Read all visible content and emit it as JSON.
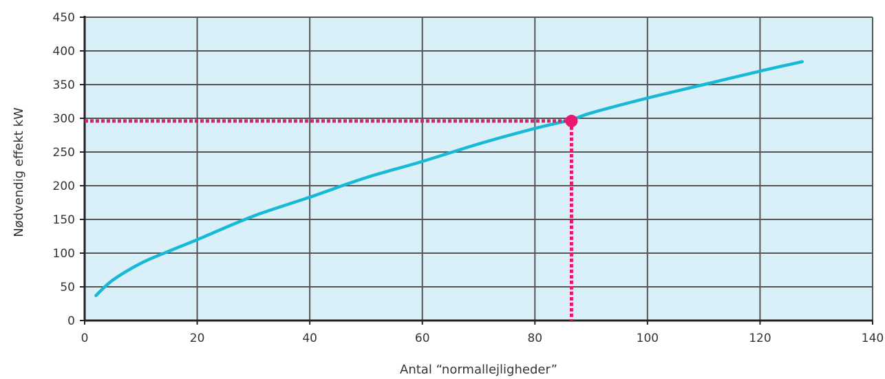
{
  "chart_data": {
    "type": "line",
    "xlabel": "Antal “normallejligheder”",
    "ylabel": "Nødvendig effekt kW",
    "xlim": [
      0,
      140
    ],
    "ylim": [
      0,
      450
    ],
    "xticks": [
      0,
      20,
      40,
      60,
      80,
      100,
      120,
      140
    ],
    "yticks": [
      0,
      50,
      100,
      150,
      200,
      250,
      300,
      350,
      400,
      450
    ],
    "grid": true,
    "legend": "none",
    "series": [
      {
        "x": [
          2,
          5,
          10,
          15,
          20,
          30,
          40,
          50,
          60,
          70,
          80,
          86.5,
          90,
          100,
          110,
          120,
          127.5
        ],
        "y": [
          37,
          60,
          85,
          103,
          120,
          155,
          183,
          212,
          236,
          262,
          285,
          298,
          308,
          330,
          350,
          370,
          384
        ]
      }
    ],
    "annotation": {
      "x": 86.5,
      "y": 296
    },
    "colors": {
      "plot_background": "#d9f0f8",
      "grid": "#555555",
      "curve": "#18b9d6",
      "marker": "#e8196f"
    }
  }
}
